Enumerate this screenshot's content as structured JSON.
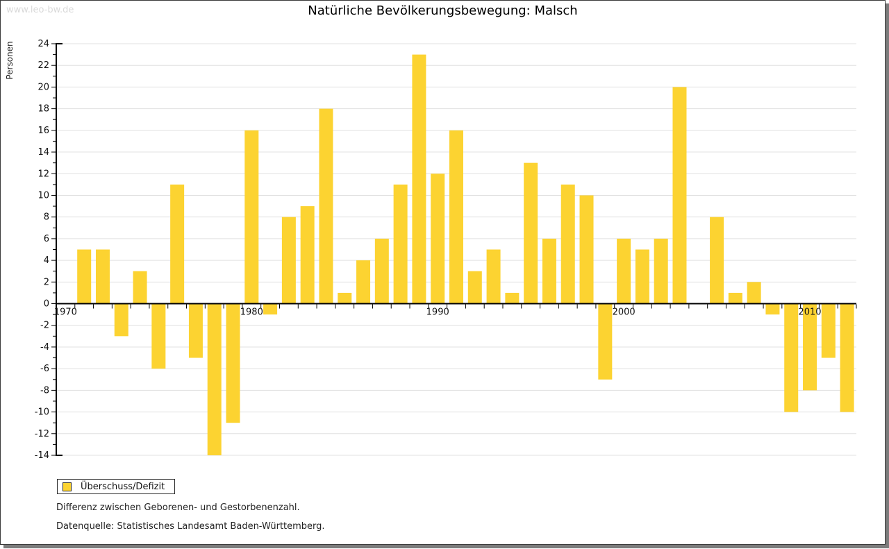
{
  "window": {
    "watermark": "www.leo-bw.de"
  },
  "title": "Natürliche Bevölkerungsbewegung: Malsch",
  "legend": {
    "label": "Überschuss/Defizit",
    "swatch_color": "#FCD331"
  },
  "notes": {
    "line1": "Differenz zwischen Geborenen- und Gestorbenenzahl.",
    "line2": "Datenquelle: Statistisches Landesamt Baden-Württemberg."
  },
  "chart_data": {
    "type": "bar",
    "title": "Natürliche Bevölkerungsbewegung: Malsch",
    "xlabel": "",
    "ylabel": "Personen",
    "ylim": [
      -14,
      24
    ],
    "y_tick_step": 2,
    "grid": true,
    "legend_position": "bottom-left",
    "x": [
      1970,
      1971,
      1972,
      1973,
      1974,
      1975,
      1976,
      1977,
      1978,
      1979,
      1980,
      1981,
      1982,
      1983,
      1984,
      1985,
      1986,
      1987,
      1988,
      1989,
      1990,
      1991,
      1992,
      1993,
      1994,
      1995,
      1996,
      1997,
      1998,
      1999,
      2000,
      2001,
      2002,
      2003,
      2004,
      2005,
      2006,
      2007,
      2008,
      2009,
      2010,
      2011,
      2012
    ],
    "x_tick_labels": [
      1970,
      1980,
      1990,
      2000,
      2010
    ],
    "series": [
      {
        "name": "Überschuss/Defizit",
        "color": "#FCD331",
        "values": [
          0,
          5,
          5,
          -3,
          3,
          -6,
          11,
          -5,
          -14,
          -11,
          16,
          -1,
          8,
          9,
          18,
          1,
          4,
          6,
          11,
          23,
          12,
          16,
          3,
          5,
          1,
          13,
          6,
          11,
          10,
          -7,
          6,
          5,
          6,
          20,
          0,
          8,
          1,
          2,
          -1,
          -10,
          -8,
          -5,
          -10
        ]
      }
    ]
  },
  "colors": {
    "bar": "#FCD331",
    "grid": "#E0E0E0",
    "axis": "#000000",
    "text": "#111111",
    "watermark": "#D9D9D9",
    "frame_shadow": "#7C7C7C"
  }
}
